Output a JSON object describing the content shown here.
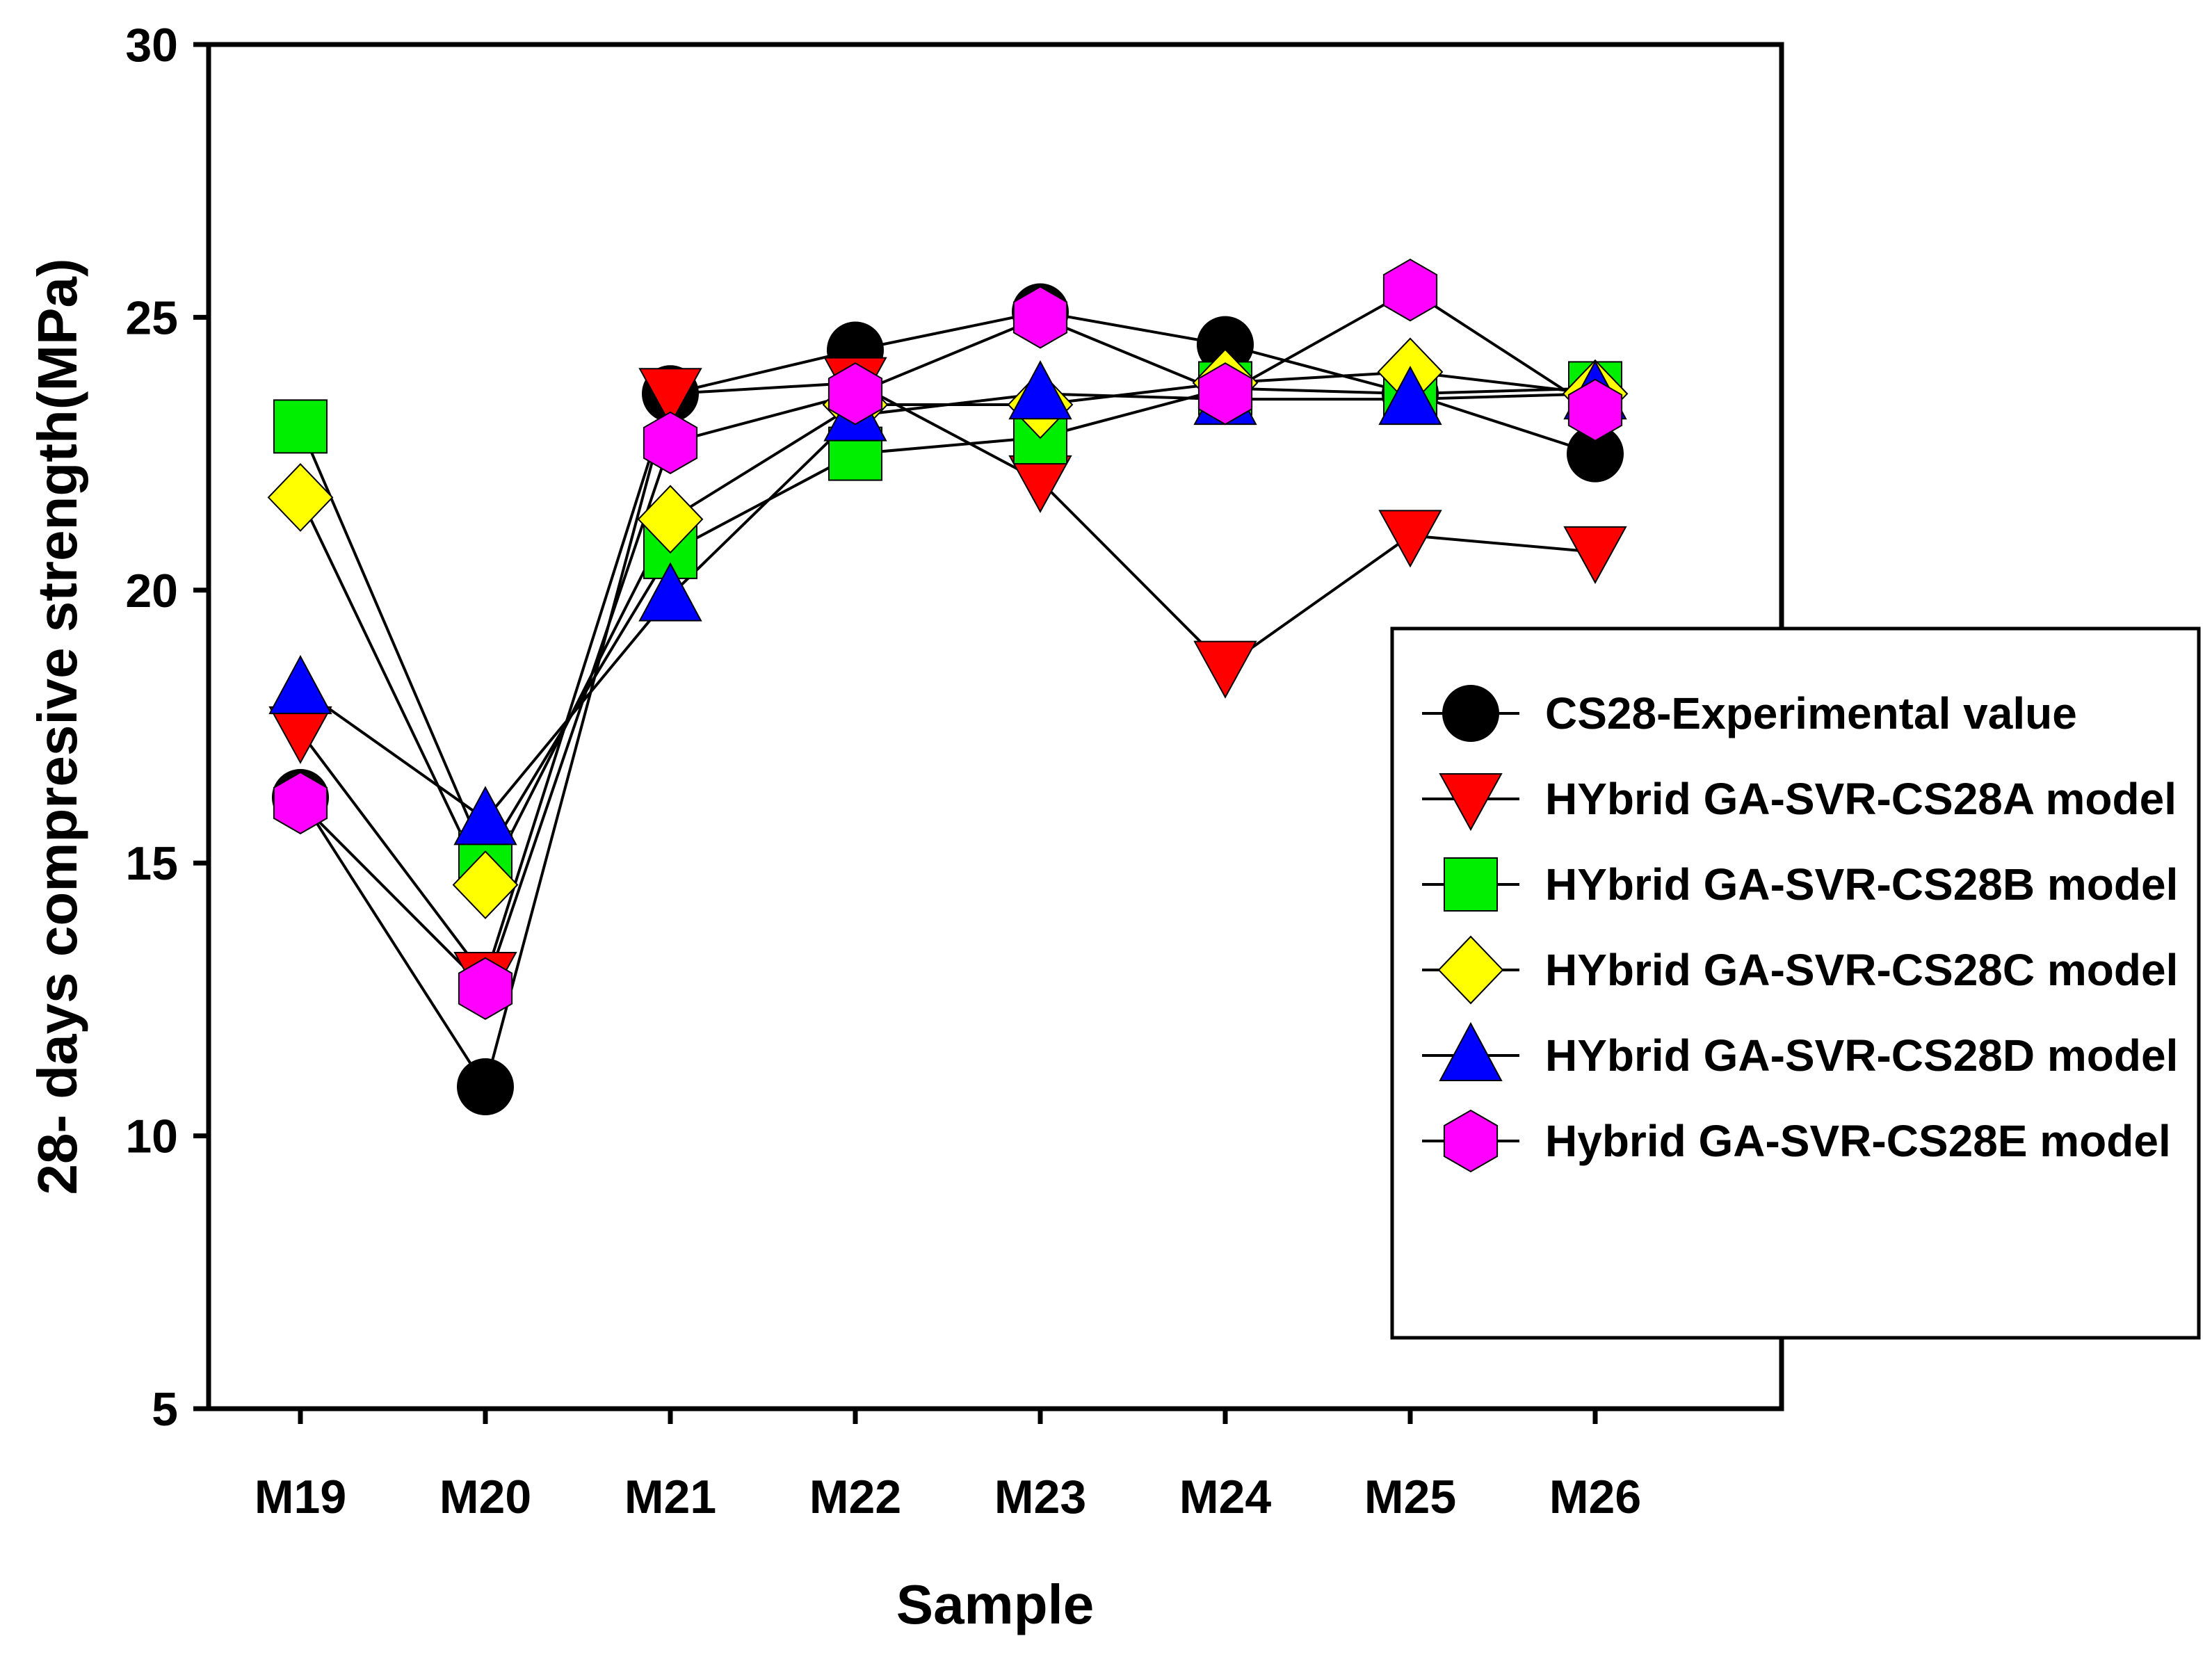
{
  "chart_data": {
    "type": "line",
    "title": "",
    "xlabel": "Sample",
    "ylabel": "28- days compresive strength(MPa)",
    "ylim": [
      5,
      30
    ],
    "yticks": [
      5,
      10,
      15,
      20,
      25,
      30
    ],
    "categories": [
      "M19",
      "M20",
      "M21",
      "M22",
      "M23",
      "M24",
      "M25",
      "M26"
    ],
    "grid": false,
    "legend_position": "right-middle",
    "series": [
      {
        "name": "CS28-Experimental value",
        "marker": "circle",
        "color": "#000000",
        "values": [
          16.2,
          10.9,
          23.6,
          24.4,
          25.1,
          24.5,
          23.6,
          22.5
        ]
      },
      {
        "name": "HYbrid GA-SVR-CS28A model",
        "marker": "triangle-down",
        "color": "#ff0000",
        "values": [
          17.4,
          12.9,
          23.6,
          23.8,
          22.0,
          18.6,
          21.0,
          20.7
        ]
      },
      {
        "name": "HYbrid GA-SVR-CS28B model",
        "marker": "square",
        "color": "#00ee00",
        "values": [
          23.0,
          15.1,
          20.7,
          22.5,
          22.8,
          23.7,
          23.6,
          23.7
        ]
      },
      {
        "name": "HYbrid GA-SVR-CS28C model",
        "marker": "diamond",
        "color": "#ffff00",
        "values": [
          21.7,
          14.6,
          21.3,
          23.4,
          23.4,
          23.8,
          24.0,
          23.6
        ]
      },
      {
        "name": "HYbrid GA-SVR-CS28D model",
        "marker": "triangle-up",
        "color": "#0000ff",
        "values": [
          18.2,
          15.8,
          19.9,
          23.2,
          23.6,
          23.5,
          23.5,
          23.6
        ]
      },
      {
        "name": "Hybrid GA-SVR-CS28E model",
        "marker": "hexagon",
        "color": "#ff00ff",
        "values": [
          16.1,
          12.7,
          22.7,
          23.6,
          25.0,
          23.6,
          25.5,
          23.3
        ]
      }
    ]
  }
}
